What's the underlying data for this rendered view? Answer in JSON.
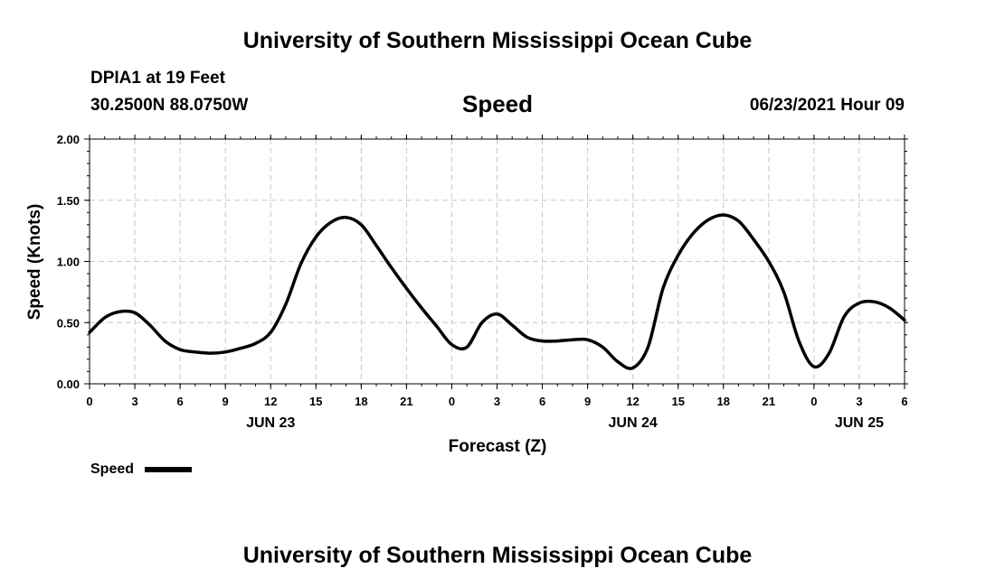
{
  "header": {
    "title": "University of Southern Mississippi Ocean Cube",
    "station": "DPIA1 at 19 Feet",
    "coords": "30.2500N  88.0750W",
    "datetime": "06/23/2021 Hour 09"
  },
  "footer": {
    "title": "University of Southern Mississippi Ocean Cube"
  },
  "colors": {
    "line": "#000000",
    "grid": "#c8c8c8",
    "axis": "#000000"
  },
  "chart_data": {
    "type": "line",
    "title": "Speed",
    "xlabel": "Forecast (Z)",
    "ylabel": "Speed (Knots)",
    "x_unit": "hours from 2021-06-23 00Z",
    "xlim": [
      0,
      54
    ],
    "ylim": [
      0,
      2
    ],
    "grid": true,
    "y_ticks": [
      "0.00",
      "0.50",
      "1.00",
      "1.50",
      "2.00"
    ],
    "x_ticks": [
      {
        "x": 0,
        "label": "0"
      },
      {
        "x": 3,
        "label": "3"
      },
      {
        "x": 6,
        "label": "6"
      },
      {
        "x": 9,
        "label": "9"
      },
      {
        "x": 12,
        "label": "12"
      },
      {
        "x": 15,
        "label": "15"
      },
      {
        "x": 18,
        "label": "18"
      },
      {
        "x": 21,
        "label": "21"
      },
      {
        "x": 24,
        "label": "0"
      },
      {
        "x": 27,
        "label": "3"
      },
      {
        "x": 30,
        "label": "6"
      },
      {
        "x": 33,
        "label": "9"
      },
      {
        "x": 36,
        "label": "12"
      },
      {
        "x": 39,
        "label": "15"
      },
      {
        "x": 42,
        "label": "18"
      },
      {
        "x": 45,
        "label": "21"
      },
      {
        "x": 48,
        "label": "0"
      },
      {
        "x": 51,
        "label": "3"
      },
      {
        "x": 54,
        "label": "6"
      }
    ],
    "day_labels": [
      {
        "x": 12,
        "label": "JUN 23"
      },
      {
        "x": 36,
        "label": "JUN 24"
      },
      {
        "x": 51,
        "label": "JUN 25"
      }
    ],
    "legend": {
      "label": "Speed",
      "position": "bottom-left"
    },
    "series": [
      {
        "name": "Speed",
        "x": [
          0,
          1,
          2,
          3,
          4,
          5,
          6,
          7,
          8,
          9,
          10,
          11,
          12,
          13,
          14,
          15,
          16,
          17,
          18,
          19,
          20,
          21,
          22,
          23,
          24,
          25,
          26,
          27,
          28,
          29,
          30,
          31,
          32,
          33,
          34,
          35,
          36,
          37,
          38,
          39,
          40,
          41,
          42,
          43,
          44,
          45,
          46,
          47,
          48,
          49,
          50,
          51,
          52,
          53,
          54
        ],
        "y": [
          0.42,
          0.54,
          0.59,
          0.58,
          0.48,
          0.35,
          0.28,
          0.26,
          0.25,
          0.26,
          0.29,
          0.33,
          0.42,
          0.65,
          0.98,
          1.2,
          1.32,
          1.36,
          1.3,
          1.13,
          0.95,
          0.78,
          0.62,
          0.47,
          0.32,
          0.3,
          0.5,
          0.57,
          0.48,
          0.38,
          0.35,
          0.35,
          0.36,
          0.36,
          0.3,
          0.18,
          0.13,
          0.3,
          0.78,
          1.05,
          1.23,
          1.34,
          1.38,
          1.33,
          1.18,
          1.0,
          0.75,
          0.35,
          0.14,
          0.25,
          0.55,
          0.66,
          0.67,
          0.62,
          0.52
        ]
      }
    ]
  }
}
